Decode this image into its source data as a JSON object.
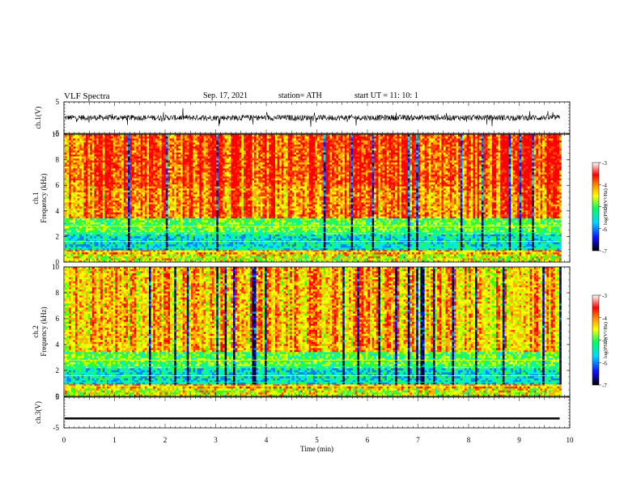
{
  "header": {
    "title": "VLF  Spectra",
    "date": "Sep. 17, 2021",
    "station": "station= ATH",
    "start": "start  UT  =    11: 10: 1"
  },
  "colors": {
    "scale": [
      "#000000",
      "#1010ff",
      "#00d8ff",
      "#00ff60",
      "#ffff00",
      "#ff9000",
      "#ff0000",
      "#ffffff"
    ]
  },
  "chart_data": [
    {
      "type": "line",
      "panel": "ch1-waveform",
      "ylabel": "ch.1(V)",
      "ylim": [
        -5,
        5
      ],
      "yticks": [
        5,
        -5
      ],
      "xlim": [
        0,
        10
      ],
      "series_summary": {
        "mean": 0,
        "approx_amplitude": 1.0
      }
    },
    {
      "type": "heatmap",
      "panel": "ch1-spectrogram",
      "ylabel": "ch.1\nFrequency  (kHz)",
      "ylim": [
        0,
        10
      ],
      "yticks": [
        0,
        2,
        4,
        6,
        8,
        10
      ],
      "xlim": [
        0,
        10
      ],
      "data_end_min": 9.8,
      "colorbar": {
        "label": "log(PSD)(V²/Hz)",
        "range": [
          -7,
          -3
        ],
        "ticks": [
          -3,
          -4,
          -5,
          -6,
          -7
        ]
      }
    },
    {
      "type": "heatmap",
      "panel": "ch2-spectrogram",
      "ylabel": "ch.2\nFrequency  (kHz)",
      "ylim": [
        0,
        10
      ],
      "yticks": [
        0,
        2,
        4,
        6,
        8,
        10
      ],
      "xlim": [
        0,
        10
      ],
      "data_end_min": 9.8,
      "colorbar": {
        "label": "log(PSD)(V²/Hz)",
        "range": [
          -7,
          -3
        ],
        "ticks": [
          -3,
          -4,
          -5,
          -6,
          -7
        ]
      }
    },
    {
      "type": "line",
      "panel": "ch3-waveform",
      "ylabel": "ch.3(V)",
      "ylim": [
        -5,
        5
      ],
      "yticks": [
        5,
        -5
      ],
      "xlim": [
        0,
        10
      ],
      "xlabel": "Time  (min)",
      "xticks": [
        0,
        1,
        2,
        3,
        4,
        5,
        6,
        7,
        8,
        9,
        10
      ],
      "series_summary": {
        "mean": -1.8,
        "approx_amplitude": 0.2
      }
    }
  ]
}
